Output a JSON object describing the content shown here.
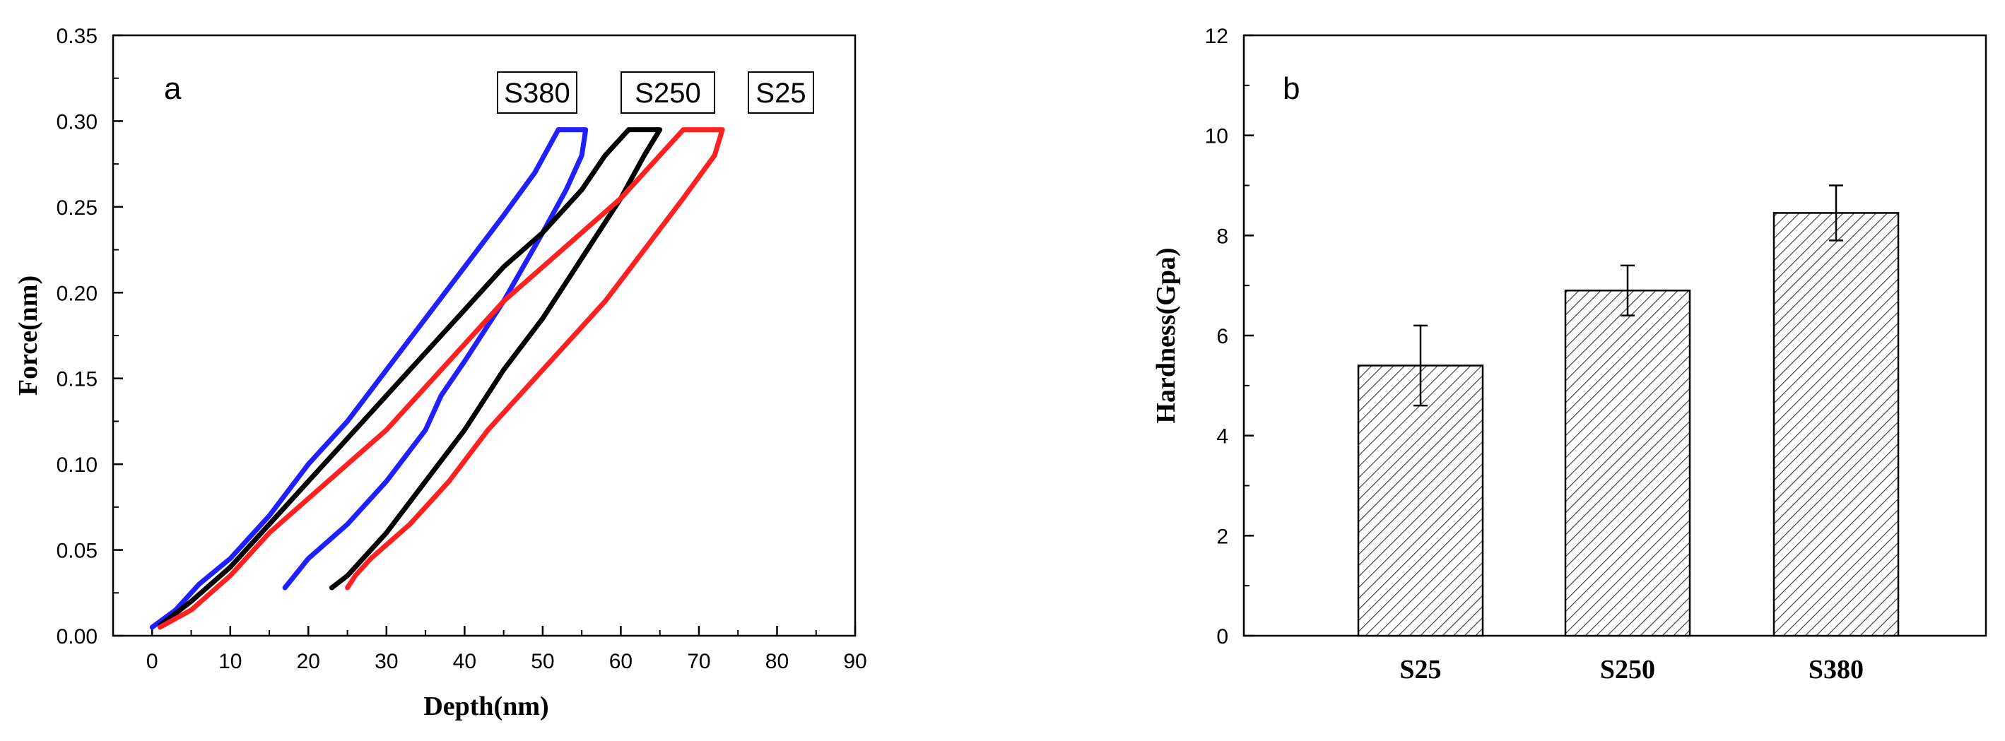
{
  "chart_data": [
    {
      "type": "line",
      "panel_label": "a",
      "xlabel": "Depth(nm)",
      "ylabel": "Force(nm)",
      "xlim": [
        -5,
        90
      ],
      "ylim": [
        0,
        0.35
      ],
      "xticks": [
        0,
        10,
        20,
        30,
        40,
        50,
        60,
        70,
        80,
        90
      ],
      "yticks": [
        0.0,
        0.05,
        0.1,
        0.15,
        0.2,
        0.25,
        0.3,
        0.35
      ],
      "xtick_labels": [
        "0",
        "10",
        "20",
        "30",
        "40",
        "50",
        "60",
        "70",
        "80",
        "90"
      ],
      "ytick_labels": [
        "0.00",
        "0.05",
        "0.10",
        "0.15",
        "0.20",
        "0.25",
        "0.30",
        "0.35"
      ],
      "grid": false,
      "legend_boxes": [
        "S380",
        "S250",
        "S25"
      ],
      "series": [
        {
          "name": "S380",
          "color": "#1f1fff",
          "x": [
            0,
            3,
            6,
            10,
            15,
            20,
            25,
            30,
            35,
            40,
            45,
            49,
            52,
            55.5,
            55,
            53,
            50,
            45,
            40,
            37,
            35,
            30,
            25,
            20,
            17
          ],
          "y": [
            0.005,
            0.015,
            0.03,
            0.045,
            0.07,
            0.1,
            0.125,
            0.155,
            0.185,
            0.215,
            0.245,
            0.27,
            0.295,
            0.295,
            0.28,
            0.26,
            0.235,
            0.195,
            0.16,
            0.14,
            0.12,
            0.09,
            0.065,
            0.045,
            0.028
          ]
        },
        {
          "name": "S250",
          "color": "#000000",
          "x": [
            1,
            5,
            10,
            15,
            20,
            25,
            30,
            35,
            40,
            45,
            50,
            55,
            58,
            61,
            65,
            63,
            60,
            55,
            50,
            45,
            40,
            35,
            30,
            25,
            23
          ],
          "y": [
            0.006,
            0.02,
            0.04,
            0.065,
            0.09,
            0.115,
            0.14,
            0.165,
            0.19,
            0.215,
            0.235,
            0.26,
            0.28,
            0.295,
            0.295,
            0.28,
            0.255,
            0.22,
            0.185,
            0.155,
            0.12,
            0.09,
            0.06,
            0.035,
            0.028
          ]
        },
        {
          "name": "S25",
          "color": "#ff2020",
          "x": [
            1,
            5,
            10,
            15,
            20,
            25,
            30,
            35,
            40,
            45,
            50,
            55,
            60,
            64,
            68,
            73,
            72,
            68,
            63,
            58,
            53,
            48,
            43,
            38,
            33,
            28,
            26,
            25
          ],
          "y": [
            0.005,
            0.015,
            0.035,
            0.06,
            0.08,
            0.1,
            0.12,
            0.145,
            0.17,
            0.195,
            0.215,
            0.235,
            0.255,
            0.275,
            0.295,
            0.295,
            0.28,
            0.255,
            0.225,
            0.195,
            0.17,
            0.145,
            0.12,
            0.09,
            0.065,
            0.045,
            0.035,
            0.028
          ]
        }
      ]
    },
    {
      "type": "bar",
      "panel_label": "b",
      "xlabel": "",
      "ylabel": "Hardness(Gpa)",
      "ylim": [
        0,
        12
      ],
      "yticks": [
        0,
        2,
        4,
        6,
        8,
        10,
        12
      ],
      "ytick_labels": [
        "0",
        "2",
        "4",
        "6",
        "8",
        "10",
        "12"
      ],
      "grid": false,
      "categories": [
        "S25",
        "S250",
        "S380"
      ],
      "values": [
        5.4,
        6.9,
        8.45
      ],
      "errors": [
        0.8,
        0.5,
        0.55
      ],
      "bar_fill": "diagonal hatch"
    }
  ]
}
